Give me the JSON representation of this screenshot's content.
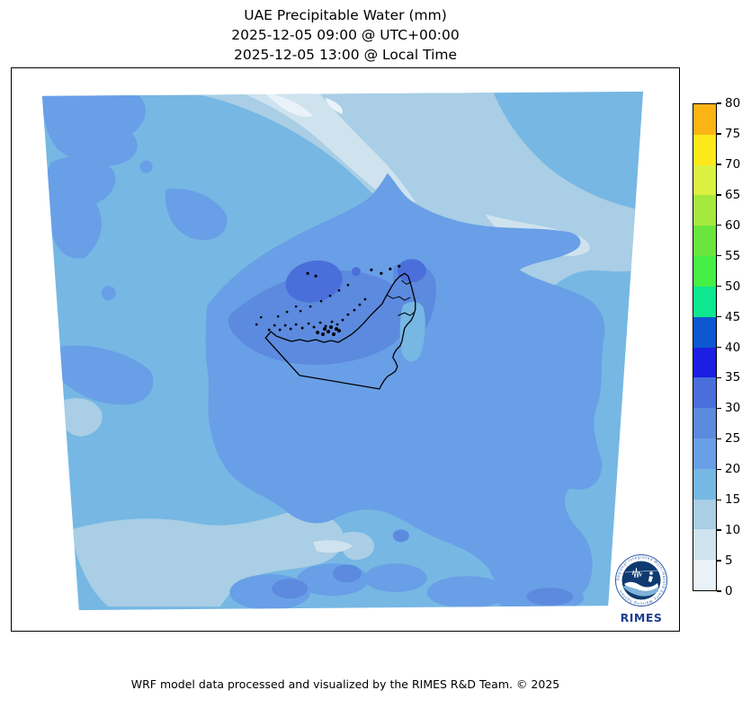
{
  "title": {
    "line1": "UAE Precipitable Water (mm)",
    "line2": "2025-12-05 09:00 @ UTC+00:00",
    "line3": "2025-12-05 13:00 @ Local Time"
  },
  "footer": {
    "credit": "WRF model data processed and visualized by the RIMES R&D Team. © 2025"
  },
  "logo": {
    "wordmark": "RIMES",
    "ring_text": "Regional Integrated Multi-Hazard Early Warning System",
    "wordmark_color": "#1d3e91",
    "ring_color": "#2d5ba8",
    "disc_color": "#0e3a70"
  },
  "chart_data": {
    "type": "heatmap",
    "subtype": "filled-contour-weather-map",
    "title": "UAE Precipitable Water (mm)",
    "valid_time_utc": "2025-12-05 09:00 @ UTC+00:00",
    "valid_time_local": "2025-12-05 13:00 @ Local Time",
    "variable": "Precipitable Water",
    "units": "mm",
    "model": "WRF",
    "region": "UAE and surrounding Arabian Gulf / Gulf of Oman (trapezoidal model domain on white background)",
    "overlay": "UAE national border, coastline and islands drawn in black",
    "contour_interval_mm": 5,
    "observed_range_mm": [
      0,
      35
    ],
    "field_summary": [
      {
        "area": "west / northwest of domain (Gulf waters)",
        "value_mm": "15-20"
      },
      {
        "area": "diagonal band across north-northeast (Iran side)",
        "value_mm": "0-15"
      },
      {
        "area": "central UAE, Musandam arm and southern desert",
        "value_mm": "20-30"
      },
      {
        "area": "maxima offshore NW of Dubai and over Musandam",
        "value_mm": "30-35"
      },
      {
        "area": "bottom-left and scattered bottom patches",
        "value_mm": "10-15"
      }
    ],
    "colorbar": {
      "orientation": "vertical",
      "position": "right",
      "min": 0,
      "max": 80,
      "step": 5,
      "ticks": [
        0,
        5,
        10,
        15,
        20,
        25,
        30,
        35,
        40,
        45,
        50,
        55,
        60,
        65,
        70,
        75,
        80
      ],
      "segment_colors": [
        "#e9f2f8",
        "#cfe3ef",
        "#a9cee5",
        "#76b7e4",
        "#699fe6",
        "#5c8ade",
        "#4a6fdb",
        "#1c1ee4",
        "#0d57d1",
        "#0fe690",
        "#46ef46",
        "#6ae53e",
        "#a5e93f",
        "#daf141",
        "#fde81a",
        "#fcb414"
      ]
    }
  }
}
